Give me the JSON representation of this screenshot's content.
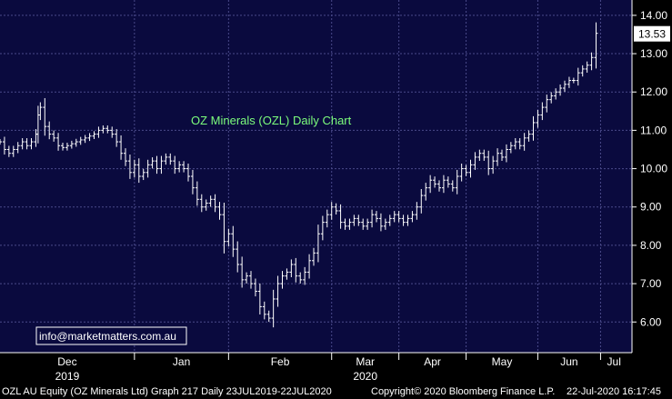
{
  "chart_data": {
    "type": "ohlc",
    "title": "OZ Minerals (OZL) Daily Chart",
    "ylim": [
      5.2,
      14.4
    ],
    "y_ticks": [
      "14.00",
      "13.00",
      "12.00",
      "11.00",
      "10.00",
      "9.00",
      "8.00",
      "7.00",
      "6.00"
    ],
    "y_tick_values": [
      14,
      13,
      12,
      11,
      10,
      9,
      8,
      7,
      6
    ],
    "x_tick_labels": [
      {
        "label": "Dec",
        "sub": "2019",
        "day": 28
      },
      {
        "label": "Jan",
        "sub": "",
        "day": 86
      },
      {
        "label": "Feb",
        "sub": "",
        "day": 117
      },
      {
        "label": "Mar",
        "sub": "2020",
        "day": 146
      },
      {
        "label": "Apr",
        "sub": "",
        "day": 177
      },
      {
        "label": "May",
        "sub": "",
        "day": 207
      },
      {
        "label": "Jun",
        "sub": "",
        "day": 238
      },
      {
        "label": "Jul",
        "sub": "",
        "day": 268
      }
    ],
    "x_start_day": 0,
    "x_end_day": 280,
    "last_price": "13.53",
    "last_price_value": 13.53,
    "grid": true,
    "prices": [
      [
        0,
        10.7
      ],
      [
        2,
        10.5
      ],
      [
        4,
        10.4
      ],
      [
        6,
        10.5
      ],
      [
        8,
        10.6
      ],
      [
        10,
        10.7
      ],
      [
        12,
        10.6
      ],
      [
        14,
        10.7
      ],
      [
        16,
        10.9
      ],
      [
        17,
        11.4
      ],
      [
        18,
        11.6
      ],
      [
        20,
        11.1
      ],
      [
        22,
        10.9
      ],
      [
        24,
        10.8
      ],
      [
        26,
        10.6
      ],
      [
        28,
        10.55
      ],
      [
        30,
        10.6
      ],
      [
        32,
        10.65
      ],
      [
        34,
        10.7
      ],
      [
        36,
        10.75
      ],
      [
        38,
        10.8
      ],
      [
        40,
        10.85
      ],
      [
        42,
        10.9
      ],
      [
        44,
        11.0
      ],
      [
        46,
        11.05
      ],
      [
        48,
        11.0
      ],
      [
        50,
        10.9
      ],
      [
        52,
        10.7
      ],
      [
        54,
        10.4
      ],
      [
        56,
        10.2
      ],
      [
        58,
        9.9
      ],
      [
        60,
        10.1
      ],
      [
        62,
        9.8
      ],
      [
        64,
        9.9
      ],
      [
        66,
        10.1
      ],
      [
        68,
        10.2
      ],
      [
        70,
        10.0
      ],
      [
        72,
        10.2
      ],
      [
        74,
        10.3
      ],
      [
        76,
        10.2
      ],
      [
        78,
        10.0
      ],
      [
        80,
        10.1
      ],
      [
        82,
        10.0
      ],
      [
        84,
        9.8
      ],
      [
        86,
        9.5
      ],
      [
        88,
        9.2
      ],
      [
        90,
        9.0
      ],
      [
        92,
        9.1
      ],
      [
        94,
        9.2
      ],
      [
        96,
        9.0
      ],
      [
        98,
        8.8
      ],
      [
        100,
        8.1
      ],
      [
        102,
        8.3
      ],
      [
        104,
        7.9
      ],
      [
        106,
        7.5
      ],
      [
        108,
        7.1
      ],
      [
        110,
        7.2
      ],
      [
        112,
        7.0
      ],
      [
        114,
        6.8
      ],
      [
        116,
        6.4
      ],
      [
        118,
        6.2
      ],
      [
        120,
        6.1
      ],
      [
        122,
        6.6
      ],
      [
        124,
        7.0
      ],
      [
        126,
        7.2
      ],
      [
        128,
        7.3
      ],
      [
        130,
        7.5
      ],
      [
        132,
        7.2
      ],
      [
        134,
        7.1
      ],
      [
        136,
        7.3
      ],
      [
        138,
        7.6
      ],
      [
        140,
        7.8
      ],
      [
        142,
        8.3
      ],
      [
        144,
        8.6
      ],
      [
        146,
        8.8
      ],
      [
        148,
        9.0
      ],
      [
        150,
        8.9
      ],
      [
        152,
        8.6
      ],
      [
        154,
        8.5
      ],
      [
        156,
        8.6
      ],
      [
        158,
        8.7
      ],
      [
        160,
        8.6
      ],
      [
        162,
        8.5
      ],
      [
        164,
        8.6
      ],
      [
        166,
        8.8
      ],
      [
        168,
        8.7
      ],
      [
        170,
        8.5
      ],
      [
        172,
        8.6
      ],
      [
        174,
        8.7
      ],
      [
        176,
        8.8
      ],
      [
        178,
        8.7
      ],
      [
        180,
        8.6
      ],
      [
        182,
        8.7
      ],
      [
        184,
        8.8
      ],
      [
        186,
        9.0
      ],
      [
        188,
        9.3
      ],
      [
        190,
        9.5
      ],
      [
        192,
        9.7
      ],
      [
        194,
        9.6
      ],
      [
        196,
        9.5
      ],
      [
        198,
        9.7
      ],
      [
        200,
        9.6
      ],
      [
        202,
        9.5
      ],
      [
        204,
        9.8
      ],
      [
        206,
        10.0
      ],
      [
        208,
        9.9
      ],
      [
        210,
        10.1
      ],
      [
        212,
        10.3
      ],
      [
        214,
        10.4
      ],
      [
        216,
        10.3
      ],
      [
        218,
        10.0
      ],
      [
        220,
        10.2
      ],
      [
        222,
        10.4
      ],
      [
        224,
        10.3
      ],
      [
        226,
        10.5
      ],
      [
        228,
        10.6
      ],
      [
        230,
        10.7
      ],
      [
        232,
        10.6
      ],
      [
        234,
        10.8
      ],
      [
        236,
        10.9
      ],
      [
        238,
        11.2
      ],
      [
        240,
        11.4
      ],
      [
        242,
        11.6
      ],
      [
        244,
        11.8
      ],
      [
        246,
        11.9
      ],
      [
        248,
        12.0
      ],
      [
        250,
        12.1
      ],
      [
        252,
        12.2
      ],
      [
        254,
        12.3
      ],
      [
        256,
        12.3
      ],
      [
        258,
        12.5
      ],
      [
        260,
        12.6
      ],
      [
        262,
        12.7
      ],
      [
        264,
        12.9
      ],
      [
        266,
        13.53
      ]
    ]
  },
  "watermark": "info@marketmatters.com.au",
  "footer": {
    "left": "OZL AU Equity (OZ Minerals Ltd) Graph 217  Daily 23JUL2019-22JUL2020",
    "copyright": "Copyright© 2020 Bloomberg Finance L.P.",
    "timestamp": "22-Jul-2020 16:17:45"
  },
  "colors": {
    "background": "#0A0A3E",
    "grid": "#4A4A8A",
    "bars": "#FFFFFF",
    "title": "#7CFC7C",
    "last_price_box": "#FFFFFF"
  }
}
